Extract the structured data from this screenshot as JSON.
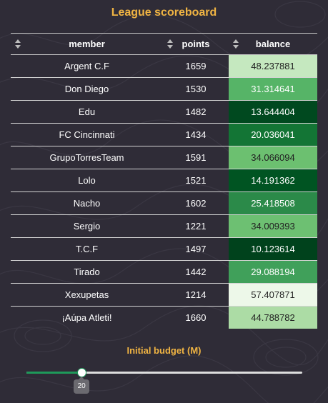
{
  "title": "League scoreboard",
  "table": {
    "columns": [
      "member",
      "points",
      "balance"
    ],
    "rows": [
      {
        "member": "Argent C.F",
        "points": "1659",
        "balance": "48.237881",
        "bg": "#c5e8bf",
        "fg": "#222222"
      },
      {
        "member": "Don Diego",
        "points": "1530",
        "balance": "31.314641",
        "bg": "#56b467",
        "fg": "#ffffff"
      },
      {
        "member": "Edu",
        "points": "1482",
        "balance": "13.644404",
        "bg": "#00491f",
        "fg": "#ffffff"
      },
      {
        "member": "FC Cincinnati",
        "points": "1434",
        "balance": "20.036041",
        "bg": "#137535",
        "fg": "#ffffff"
      },
      {
        "member": "GrupoTorresTeam",
        "points": "1591",
        "balance": "34.066094",
        "bg": "#6cc070",
        "fg": "#222222"
      },
      {
        "member": "Lolo",
        "points": "1521",
        "balance": "14.191362",
        "bg": "#005422",
        "fg": "#ffffff"
      },
      {
        "member": "Nacho",
        "points": "1602",
        "balance": "25.418508",
        "bg": "#2b8a49",
        "fg": "#ffffff"
      },
      {
        "member": "Sergio",
        "points": "1221",
        "balance": "34.009393",
        "bg": "#6dc072",
        "fg": "#222222"
      },
      {
        "member": "T.C.F",
        "points": "1497",
        "balance": "10.123614",
        "bg": "#00421c",
        "fg": "#ffffff"
      },
      {
        "member": "Tirado",
        "points": "1442",
        "balance": "29.088194",
        "bg": "#40a05a",
        "fg": "#ffffff"
      },
      {
        "member": "Xexupetas",
        "points": "1214",
        "balance": "57.407871",
        "bg": "#edf8e9",
        "fg": "#222222"
      },
      {
        "member": "¡Aúpa Atleti!",
        "points": "1660",
        "balance": "44.788782",
        "bg": "#acdca5",
        "fg": "#222222"
      }
    ]
  },
  "slider": {
    "label": "Initial budget (M)",
    "value_label": "20",
    "fraction": 0.2,
    "accent": "#1e9a5a"
  }
}
